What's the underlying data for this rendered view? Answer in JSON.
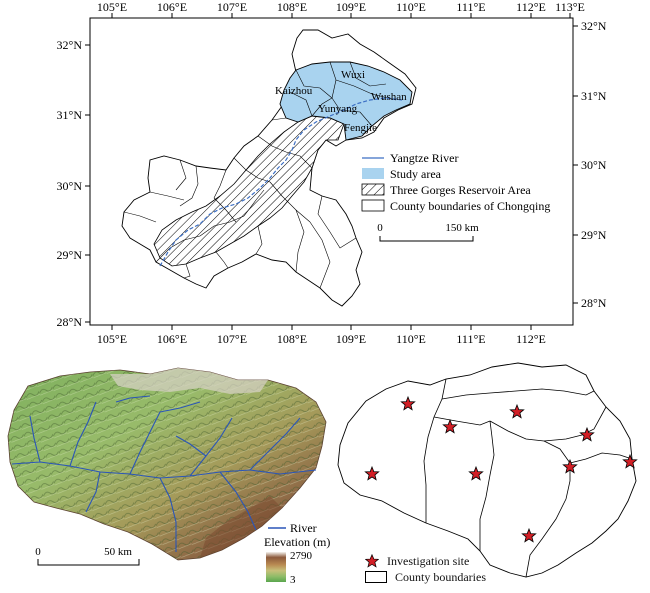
{
  "top_map": {
    "lon_labels": [
      "105°E",
      "106°E",
      "107°E",
      "108°E",
      "109°E",
      "110°E",
      "111°E",
      "112°E",
      "113°E"
    ],
    "lat_labels_left": [
      "32°N",
      "31°N",
      "30°N",
      "29°N",
      "28°N"
    ],
    "lat_labels_right": [
      "32°N",
      "31°N",
      "30°N",
      "29°N",
      "28°N"
    ],
    "county_labels": {
      "kaizhou": "Kaizhou",
      "wuxi": "Wuxi",
      "wushan": "Wushan",
      "yunyang": "Yunyang",
      "fengjie": "Fengjie"
    },
    "legend": {
      "river": "Yangtze River",
      "study_area": "Study area",
      "reservoir": "Three Gorges Reservoir Area",
      "county": "County boundaries of Chongqing"
    },
    "scale": {
      "zero": "0",
      "distance": "150 km"
    },
    "colors": {
      "study_area": "#a9d3ef",
      "river": "#3c6fc4"
    }
  },
  "dem_map": {
    "scale": {
      "zero": "0",
      "distance": "50 km"
    },
    "legend": {
      "river": "River",
      "elevation_title": "Elevation (m)",
      "elevation_max": "2790",
      "elevation_min": "3"
    }
  },
  "site_map": {
    "legend": {
      "site": "Investigation site",
      "county": "County boundaries"
    },
    "site_count": 9
  }
}
